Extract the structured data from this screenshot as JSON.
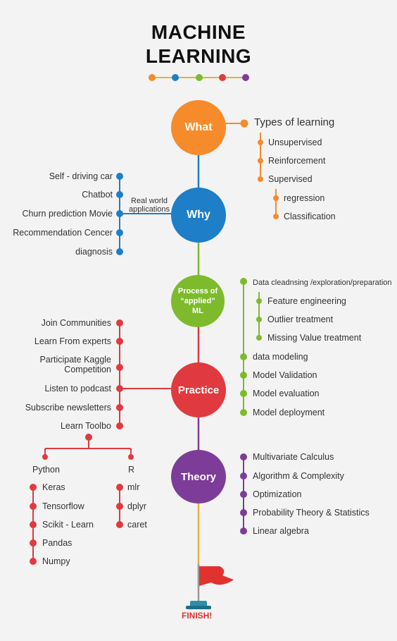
{
  "title_line1": "MACHINE",
  "title_line2": "LEARNING",
  "colors": {
    "orange": "#f68b2b",
    "blue": "#1e7ec8",
    "green": "#7dbb2d",
    "red": "#e0393f",
    "purple": "#7d3c98",
    "gold": "#e6b23a"
  },
  "nodes": {
    "what": "What",
    "why": "Why",
    "process": "Process of “applied” ML",
    "practice": "Practice",
    "theory": "Theory"
  },
  "what": {
    "types_label": "Types of learning",
    "items": [
      "Unsupervised",
      "Reinforcement",
      "Supervised"
    ],
    "supervised_items": [
      "regression",
      "Classification"
    ]
  },
  "why": {
    "connector_label": "Real world applications",
    "items": [
      "Self - driving car",
      "Chatbot",
      "Churn prediction Movie",
      "Recommendation Cencer",
      "diagnosis"
    ]
  },
  "process": {
    "head": "Data cleadnsing /exploration/preparation",
    "sub_items": [
      "Feature engineering",
      "Outlier treatment",
      "Missing Value treatment"
    ],
    "items": [
      "data modeling",
      "Model Validation",
      "Model evaluation",
      "Model deployment"
    ]
  },
  "practice": {
    "items": [
      "Join Communities",
      "Learn From experts",
      "Participate Kaggle Competition",
      "Listen to podcast",
      "Subscribe newsletters",
      "Learn Toolbo"
    ]
  },
  "tools": {
    "python": "Python",
    "r": "R",
    "python_items": [
      "Keras",
      "Tensorflow",
      "Scikit - Learn",
      "Pandas",
      "Numpy"
    ],
    "r_items": [
      "mlr",
      "dplyr",
      "caret"
    ]
  },
  "theory": {
    "items": [
      "Multivariate Calculus",
      "Algorithm & Complexity",
      "Optimization",
      "Probability Theory & Statistics",
      "Linear algebra"
    ]
  },
  "finish_label": "FINISH!"
}
